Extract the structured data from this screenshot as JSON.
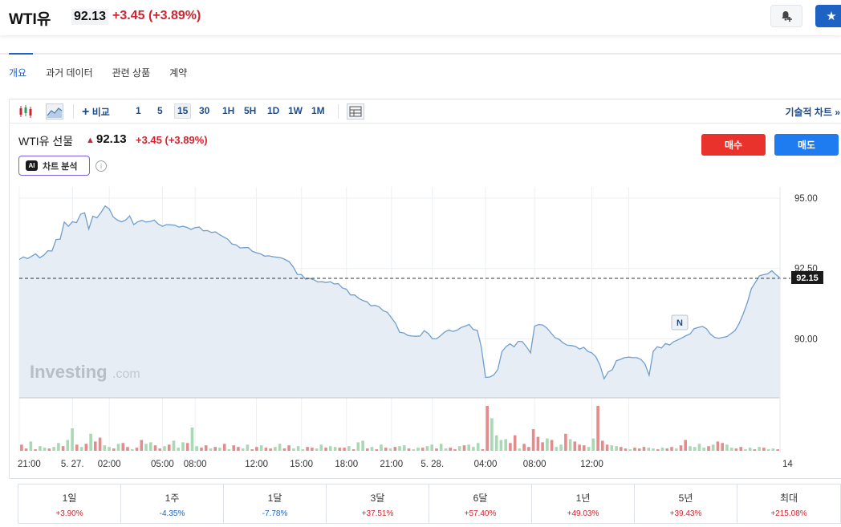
{
  "header": {
    "name": "WTI유",
    "price": "92.13",
    "change": "+3.45",
    "change_pct": "(+3.89%)"
  },
  "subtabs": [
    "개요",
    "과거 데이터",
    "관련 상품",
    "계약"
  ],
  "toolbar": {
    "compare_label": "비교",
    "intervals": [
      "1",
      "5",
      "15",
      "30",
      "1H",
      "5H",
      "1D",
      "1W",
      "1M"
    ],
    "selected_interval": "15",
    "tech_chart_label": "기술적 차트 »"
  },
  "legend": {
    "title": "WTI유 선물",
    "price": "92.13",
    "change": "+3.45 (+3.89%)"
  },
  "ai": {
    "badge": "AI",
    "label": "차트 분석",
    "info": "i"
  },
  "trade": {
    "buy_label": "매수",
    "sell_label": "매도"
  },
  "watermark": {
    "brand": "Investing",
    "suffix": ".com"
  },
  "news_marker": "N",
  "colors": {
    "accent": "#1e63c4",
    "up": "#d1242f",
    "down": "#1e63c4",
    "area_fill": "#e6edf5",
    "line": "#6f9fce",
    "volume_up": "#a8d8b4",
    "volume_down": "#e58b8b"
  },
  "chart_data": {
    "type": "area",
    "y_ticks": [
      "95.00",
      "92.50",
      "90.00"
    ],
    "y_tick_values": [
      95.0,
      92.5,
      90.0
    ],
    "ylim": [
      87.9,
      95.4
    ],
    "current_price_label": "92.15",
    "current_price": 92.15,
    "x_tick_labels": [
      "21:00",
      "5. 27.",
      "02:00",
      "05:00",
      "08:00",
      "12:00",
      "15:00",
      "18:00",
      "21:00",
      "5. 28.",
      "04:00",
      "08:00",
      "12:00",
      "14"
    ],
    "x_tick_index": [
      0,
      13,
      22,
      35,
      43,
      58,
      69,
      80,
      91,
      101,
      114,
      126,
      140,
      149
    ],
    "grid": true,
    "price_series": [
      92.82,
      92.91,
      92.85,
      92.93,
      93.02,
      92.88,
      92.97,
      93.13,
      93.12,
      93.53,
      93.54,
      94.15,
      94.0,
      94.16,
      94.13,
      94.43,
      94.48,
      93.9,
      94.36,
      94.3,
      94.49,
      94.72,
      94.62,
      94.33,
      94.22,
      94.16,
      94.22,
      94.37,
      94.06,
      94.16,
      94.21,
      94.15,
      94.17,
      94.22,
      94.08,
      94.0,
      94.06,
      94.05,
      94.04,
      93.97,
      94.0,
      93.96,
      93.89,
      93.95,
      93.97,
      93.84,
      93.85,
      93.78,
      93.8,
      93.7,
      93.62,
      93.54,
      93.37,
      93.34,
      93.23,
      93.24,
      93.24,
      93.11,
      93.06,
      93.02,
      92.94,
      92.95,
      92.92,
      92.9,
      92.88,
      92.82,
      92.74,
      92.55,
      92.29,
      92.28,
      92.12,
      92.15,
      92.1,
      92.02,
      92.03,
      92.0,
      92.03,
      91.95,
      91.96,
      91.81,
      91.76,
      91.56,
      91.56,
      91.44,
      91.36,
      91.32,
      91.17,
      91.19,
      91.13,
      91.0,
      90.94,
      90.75,
      90.55,
      90.23,
      90.21,
      90.12,
      90.1,
      90.09,
      90.1,
      90.29,
      90.19,
      90.0,
      90.0,
      90.11,
      90.24,
      90.31,
      90.26,
      90.3,
      90.4,
      90.45,
      90.51,
      90.33,
      90.3,
      89.69,
      88.63,
      88.64,
      88.71,
      88.91,
      89.54,
      89.72,
      89.82,
      89.72,
      89.91,
      89.9,
      89.72,
      89.5,
      90.45,
      90.51,
      90.49,
      90.38,
      90.21,
      90.04,
      89.98,
      89.85,
      89.77,
      89.76,
      89.73,
      89.63,
      89.7,
      89.55,
      89.5,
      89.36,
      89.06,
      88.58,
      88.82,
      88.9,
      89.22,
      89.27,
      89.33,
      89.35,
      89.33,
      89.33,
      89.27,
      89.1,
      88.7,
      89.55,
      89.72,
      89.67,
      89.83,
      89.78,
      89.9,
      89.96,
      90.03,
      90.11,
      90.17,
      90.36,
      90.4,
      90.44,
      90.36,
      90.16,
      90.05,
      90.02,
      90.05,
      90.08,
      90.18,
      90.29,
      90.54,
      90.88,
      91.28,
      91.78,
      92.01,
      92.24,
      92.28,
      92.31,
      92.42,
      92.28,
      92.17
    ],
    "volume_series": [
      8,
      3,
      12,
      2,
      6,
      4,
      3,
      5,
      10,
      6,
      14,
      29,
      8,
      5,
      9,
      22,
      12,
      17,
      7,
      5,
      3,
      9,
      10,
      5,
      2,
      4,
      14,
      9,
      11,
      7,
      3,
      6,
      8,
      13,
      4,
      11,
      10,
      30,
      6,
      4,
      7,
      3,
      5,
      4,
      9,
      2,
      7,
      5,
      3,
      8,
      2,
      5,
      7,
      4,
      3,
      5,
      9,
      3,
      7,
      3,
      6,
      2,
      5,
      4,
      3,
      8,
      4,
      6,
      5,
      4,
      4,
      6,
      2,
      11,
      13,
      3,
      5,
      2,
      8,
      4,
      3,
      5,
      6,
      7,
      3,
      2,
      4,
      4,
      6,
      8,
      3,
      9,
      3,
      4,
      2,
      6,
      7,
      8,
      5,
      10,
      2,
      58,
      42,
      20,
      14,
      15,
      10,
      20,
      3,
      9,
      5,
      28,
      18,
      11,
      16,
      14,
      5,
      8,
      22,
      15,
      12,
      8,
      7,
      5,
      16,
      58,
      13,
      8,
      7,
      6,
      5,
      3,
      2,
      4,
      3,
      5,
      4,
      3,
      2,
      4,
      3,
      5,
      3,
      7,
      14,
      6,
      5,
      9,
      4,
      6,
      8,
      12,
      10,
      8,
      4,
      3,
      5,
      2,
      4,
      2,
      5,
      4,
      2,
      3,
      2
    ],
    "volume_up_flags": [
      0,
      0,
      1,
      0,
      1,
      1,
      0,
      1,
      1,
      0,
      1,
      1,
      0,
      1,
      0,
      1,
      0,
      0,
      1,
      1,
      0,
      1,
      0,
      0,
      1,
      0,
      0,
      1,
      1,
      0,
      0,
      1,
      0,
      1,
      1,
      1,
      0,
      1,
      1,
      0,
      0,
      1,
      0,
      1,
      0,
      1,
      0,
      0,
      1,
      1,
      0,
      0,
      1,
      0,
      0,
      1,
      1,
      0,
      0,
      1,
      1,
      1,
      0,
      0,
      1,
      1,
      0,
      1,
      1,
      0,
      0,
      1,
      0,
      1,
      1,
      0,
      1,
      0,
      1,
      0,
      1,
      0,
      1,
      1,
      0,
      1,
      1,
      0,
      1,
      1,
      0,
      1,
      1,
      0,
      0,
      1,
      0,
      1,
      1,
      1,
      0,
      0,
      1,
      1,
      1,
      1,
      0,
      0,
      1,
      0,
      0,
      0,
      0,
      0,
      1,
      0,
      1,
      1,
      0,
      1,
      0,
      0,
      0,
      1,
      1,
      0,
      0,
      0,
      1,
      1,
      0,
      0,
      1,
      0,
      0,
      0,
      1,
      1,
      0,
      1,
      0,
      0,
      1,
      0,
      0,
      1,
      1,
      1,
      1,
      0,
      1,
      0,
      0,
      1,
      1,
      0,
      0,
      1,
      1,
      0,
      1,
      0,
      1,
      1,
      0,
      0
    ]
  },
  "performance": [
    {
      "label": "1일",
      "value": "+3.90%",
      "dir": "pos"
    },
    {
      "label": "1주",
      "value": "-4.35%",
      "dir": "neg"
    },
    {
      "label": "1달",
      "value": "-7.78%",
      "dir": "neg"
    },
    {
      "label": "3달",
      "value": "+37.51%",
      "dir": "pos"
    },
    {
      "label": "6달",
      "value": "+57.40%",
      "dir": "pos"
    },
    {
      "label": "1년",
      "value": "+49.03%",
      "dir": "pos"
    },
    {
      "label": "5년",
      "value": "+39.43%",
      "dir": "pos"
    },
    {
      "label": "최대",
      "value": "+215.08%",
      "dir": "pos"
    }
  ]
}
